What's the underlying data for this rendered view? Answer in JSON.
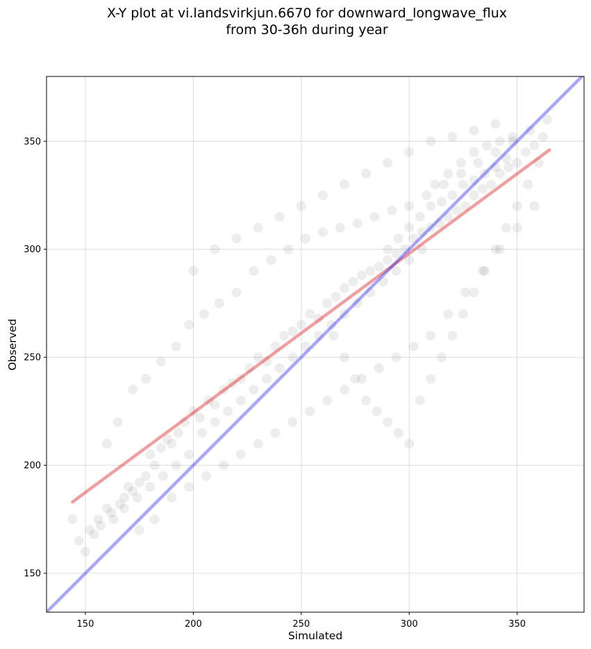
{
  "chart_data": {
    "type": "scatter",
    "title": "X-Y plot at vi.landsvirkjun.6670 for downward_longwave_flux",
    "subtitle": "from 30-36h during year",
    "xlabel": "Simulated",
    "ylabel": "Observed",
    "xlim": [
      132,
      381
    ],
    "ylim": [
      132,
      380
    ],
    "xticks": [
      150,
      200,
      250,
      300,
      350
    ],
    "yticks": [
      150,
      200,
      250,
      300,
      350
    ],
    "xtick_labels": [
      "150",
      "200",
      "250",
      "300",
      "350"
    ],
    "ytick_labels": [
      "150",
      "200",
      "250",
      "300",
      "350"
    ],
    "grid": true,
    "point_color": "#000000",
    "point_alpha": 0.07,
    "identity_line": {
      "x": [
        132,
        381
      ],
      "y": [
        132,
        381
      ],
      "color": "#0000ff"
    },
    "fit_line": {
      "x": [
        144,
        365
      ],
      "y": [
        183,
        346
      ],
      "color": "#dd0000"
    },
    "series": [
      {
        "points_x": [
          144,
          147,
          150,
          152,
          154,
          157,
          160,
          163,
          166,
          168,
          170,
          172,
          175,
          178,
          180,
          182,
          185,
          188,
          190,
          193,
          196,
          200,
          203,
          207,
          210,
          214,
          218,
          222,
          226,
          230,
          234,
          238,
          242,
          246,
          250,
          254,
          258,
          262,
          266,
          270,
          274,
          278,
          282,
          286,
          290,
          294,
          298,
          302,
          306,
          310,
          314,
          318,
          322,
          326,
          330,
          334,
          338,
          342,
          346,
          350,
          354,
          358,
          362,
          160,
          165,
          172,
          178,
          185,
          192,
          198,
          205,
          212,
          220,
          228,
          236,
          244,
          252,
          260,
          268,
          276,
          284,
          292,
          300,
          308,
          316,
          324,
          332,
          340,
          348,
          356,
          364,
          175,
          182,
          190,
          198,
          206,
          214,
          222,
          230,
          238,
          246,
          254,
          262,
          270,
          278,
          286,
          294,
          302,
          310,
          318,
          326,
          334,
          342,
          350,
          358,
          200,
          210,
          220,
          230,
          240,
          250,
          260,
          270,
          280,
          290,
          300,
          310,
          320,
          330,
          340,
          290,
          295,
          300,
          305,
          310,
          315,
          320,
          325,
          330,
          335,
          340,
          345,
          312,
          318,
          324,
          330,
          336,
          342,
          348,
          306,
          300,
          294,
          288,
          282,
          276,
          270,
          264,
          258,
          252,
          246,
          240,
          234,
          228,
          222,
          216,
          210,
          204,
          198,
          192,
          186,
          180,
          174,
          168,
          162,
          156,
          265,
          270,
          275,
          280,
          285,
          290,
          295,
          300,
          305,
          310,
          315,
          320,
          325,
          330,
          335,
          340,
          345,
          350,
          355,
          360
        ],
        "points_y": [
          175,
          165,
          160,
          170,
          168,
          172,
          180,
          175,
          182,
          185,
          190,
          188,
          192,
          195,
          205,
          200,
          208,
          212,
          210,
          215,
          220,
          225,
          222,
          230,
          228,
          235,
          238,
          240,
          245,
          250,
          248,
          255,
          260,
          262,
          265,
          270,
          268,
          275,
          278,
          282,
          285,
          288,
          290,
          292,
          295,
          298,
          300,
          305,
          308,
          310,
          312,
          315,
          318,
          320,
          325,
          328,
          330,
          335,
          338,
          340,
          345,
          348,
          352,
          210,
          220,
          235,
          240,
          248,
          255,
          265,
          270,
          275,
          280,
          290,
          295,
          300,
          305,
          308,
          310,
          312,
          315,
          318,
          320,
          325,
          330,
          335,
          340,
          345,
          350,
          355,
          360,
          170,
          175,
          185,
          190,
          195,
          200,
          205,
          210,
          215,
          220,
          225,
          230,
          235,
          240,
          245,
          250,
          255,
          260,
          270,
          280,
          290,
          300,
          310,
          320,
          290,
          300,
          305,
          310,
          315,
          320,
          325,
          330,
          335,
          340,
          345,
          350,
          352,
          355,
          358,
          300,
          305,
          310,
          315,
          320,
          322,
          325,
          330,
          332,
          335,
          338,
          342,
          330,
          335,
          340,
          345,
          348,
          350,
          352,
          300,
          295,
          290,
          285,
          280,
          275,
          270,
          265,
          260,
          255,
          250,
          245,
          240,
          235,
          230,
          225,
          220,
          215,
          205,
          200,
          195,
          190,
          185,
          180,
          178,
          175,
          260,
          250,
          240,
          230,
          225,
          220,
          215,
          210,
          230,
          240,
          250,
          260,
          270,
          280,
          290,
          300,
          310,
          320,
          330,
          340
        ]
      }
    ]
  }
}
